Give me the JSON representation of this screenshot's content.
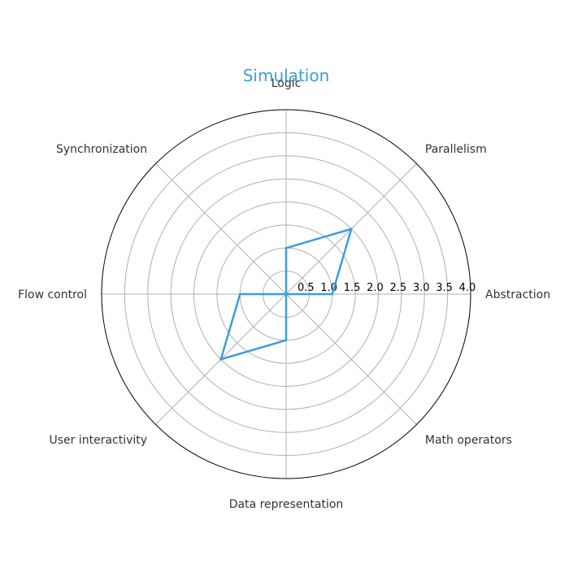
{
  "chart_data": {
    "type": "radar",
    "title": "Simulation",
    "categories": [
      "Abstraction",
      "Parallelism",
      "Logic",
      "Synchronization",
      "Flow control",
      "User interactivity",
      "Data representation",
      "Math operators"
    ],
    "series": [
      {
        "values": [
          1.0,
          2.0,
          1.0,
          0.0,
          1.0,
          2.0,
          1.0,
          0.0
        ]
      }
    ],
    "rlim": [
      0,
      4.0
    ],
    "r_ticks": [
      "0.5",
      "1.0",
      "1.5",
      "2.0",
      "2.5",
      "3.0",
      "3.5",
      "4.0"
    ],
    "grid": true,
    "colors": {
      "series": "#3a9fd9",
      "title": "#3a9fd9",
      "grid": "#b0b0b0",
      "outline": "#000000",
      "label": "#333333"
    }
  }
}
